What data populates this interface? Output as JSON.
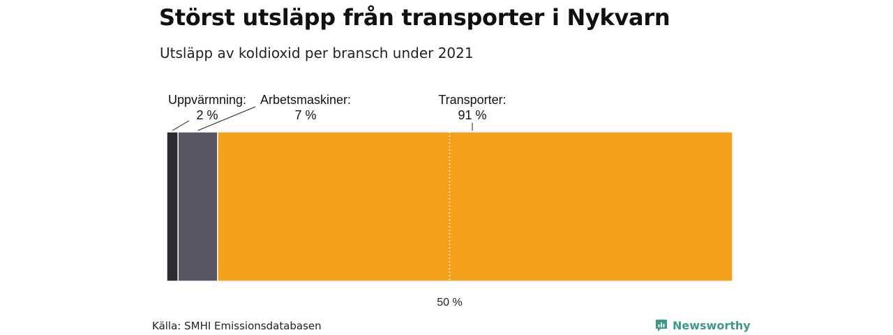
{
  "header": {
    "title": "Störst utsläpp från transporter i Nykvarn",
    "subtitle": "Utsläpp av koldioxid per bransch under 2021"
  },
  "footer": {
    "source": "Källa: SMHI Emissionsdatabasen",
    "brand": "Newsworthy",
    "brand_icon": "newsworthy-logo-icon"
  },
  "colors": {
    "segments": [
      "#2b2b36",
      "#595563",
      "#f59f1a"
    ],
    "brand": "#3d9a8b"
  },
  "chart_data": {
    "type": "bar",
    "orientation": "horizontal-stacked-100",
    "series": [
      {
        "name": "Uppvärmning:",
        "value_label": "2 %",
        "value": 2
      },
      {
        "name": "Arbetsmaskiner:",
        "value_label": "7 %",
        "value": 7
      },
      {
        "name": "Transporter:",
        "value_label": "91 %",
        "value": 91
      }
    ],
    "xlim": [
      0,
      100
    ],
    "reference_line": {
      "value": 50,
      "label": "50 %"
    }
  }
}
